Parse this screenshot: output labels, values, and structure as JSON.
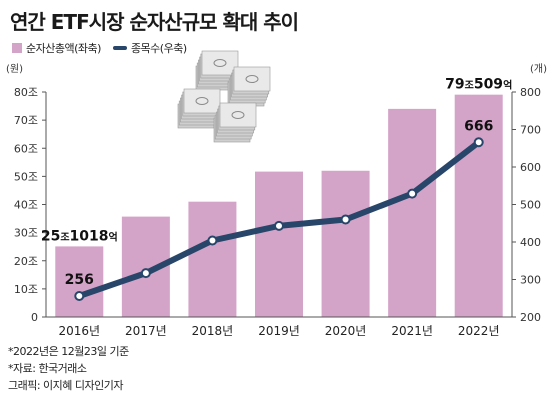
{
  "title": "연간 ETF시장 순자산규모 확대 추이",
  "legend": {
    "bar_label": "순자산총액(좌축)",
    "line_label": "종목수(우축)"
  },
  "colors": {
    "bar": "#d4a3c8",
    "line": "#27466a",
    "point_fill": "#ffffff"
  },
  "chart_data": {
    "type": "bar",
    "title": "연간 ETF시장 순자산규모 확대 추이",
    "categories": [
      "2016년",
      "2017년",
      "2018년",
      "2019년",
      "2020년",
      "2021년",
      "2022년"
    ],
    "series": [
      {
        "name": "순자산총액(좌축)",
        "type": "bar",
        "axis": "left",
        "unit": "조",
        "values": [
          25.1018,
          35.7,
          41,
          51.7,
          52,
          74,
          79.0509
        ]
      },
      {
        "name": "종목수(우축)",
        "type": "line",
        "axis": "right",
        "unit": "개",
        "values": [
          256,
          317,
          404,
          443,
          460,
          529,
          666
        ]
      }
    ],
    "y_left": {
      "unit_label": "(원)",
      "range": [
        0,
        80
      ],
      "ticks": [
        "0",
        "10조",
        "20조",
        "30조",
        "40조",
        "50조",
        "60조",
        "70조",
        "80조"
      ]
    },
    "y_right": {
      "unit_label": "(개)",
      "range": [
        200,
        800
      ],
      "ticks": [
        "200",
        "300",
        "400",
        "500",
        "600",
        "700",
        "800"
      ]
    },
    "annotations": [
      {
        "series": 0,
        "index": 0,
        "parts": [
          "25",
          "조",
          "1018",
          "억"
        ]
      },
      {
        "series": 0,
        "index": 6,
        "parts": [
          "79",
          "조",
          "509",
          "억"
        ]
      },
      {
        "series": 1,
        "index": 0,
        "text": "256"
      },
      {
        "series": 1,
        "index": 6,
        "text": "666"
      }
    ],
    "grid": false,
    "legend_position": "top-left"
  },
  "footnotes": [
    "*2022년은 12월23일 기준",
    "*자료: 한국거래소",
    "그래픽: 이지혜 디자인기자"
  ]
}
